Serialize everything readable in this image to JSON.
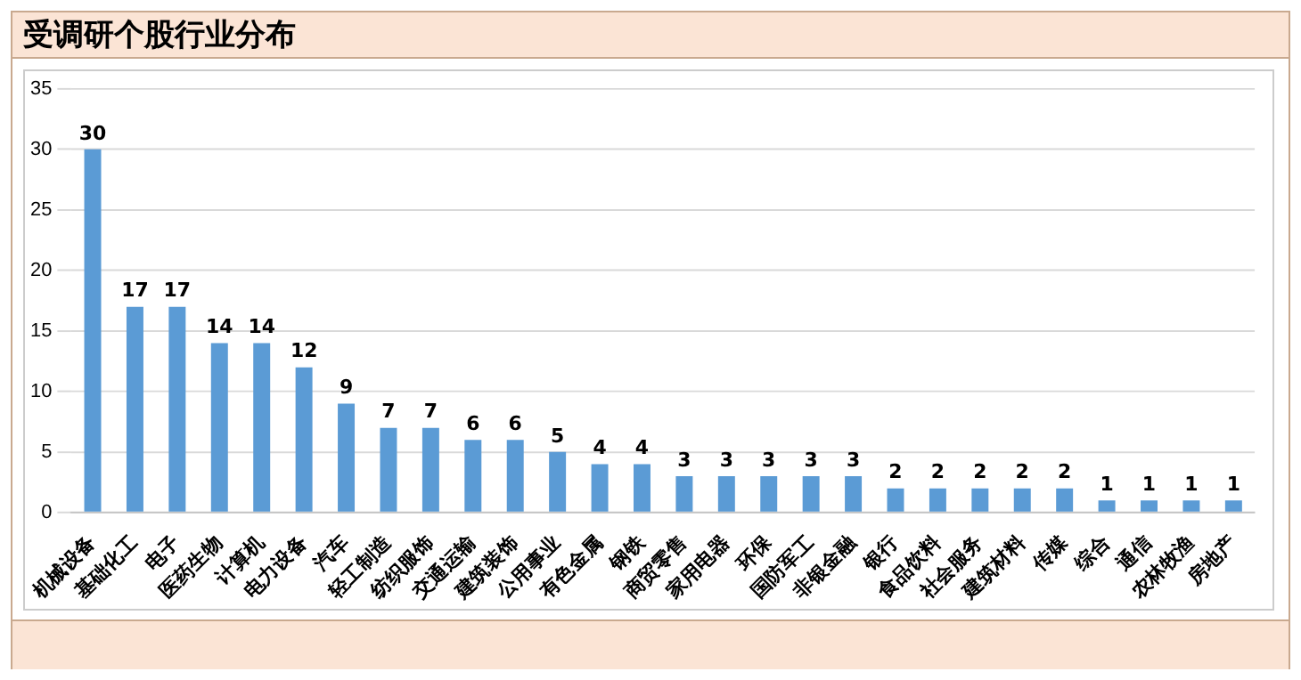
{
  "chart_data": {
    "type": "bar",
    "title": "受调研个股行业分布",
    "categories": [
      "机械设备",
      "基础化工",
      "电子",
      "医药生物",
      "计算机",
      "电力设备",
      "汽车",
      "轻工制造",
      "纺织服饰",
      "交通运输",
      "建筑装饰",
      "公用事业",
      "有色金属",
      "钢铁",
      "商贸零售",
      "家用电器",
      "环保",
      "国防军工",
      "非银金融",
      "银行",
      "食品饮料",
      "社会服务",
      "建筑材料",
      "传媒",
      "综合",
      "通信",
      "农林牧渔",
      "房地产"
    ],
    "values": [
      30,
      17,
      17,
      14,
      14,
      12,
      9,
      7,
      7,
      6,
      6,
      5,
      4,
      4,
      3,
      3,
      3,
      3,
      3,
      2,
      2,
      2,
      2,
      2,
      1,
      1,
      1,
      1
    ],
    "color": "#5b9bd5",
    "ylim": [
      0,
      35
    ],
    "yticks": [
      0,
      5,
      10,
      15,
      20,
      25,
      30,
      35
    ],
    "grid": "y",
    "legend": false,
    "data_labels": true
  }
}
